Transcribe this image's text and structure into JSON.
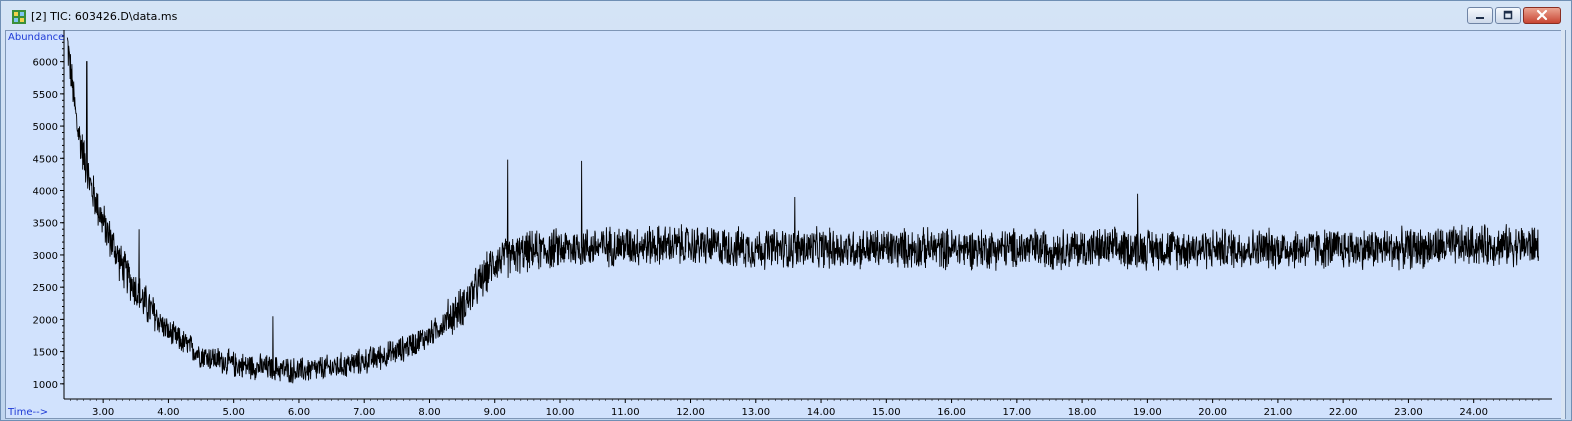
{
  "window": {
    "title": "[2] TIC: 603426.D\\data.ms",
    "icon": "chromatogram-icon",
    "buttons": {
      "minimize": "minimize-icon",
      "maximize": "maximize-icon",
      "close": "close-icon"
    }
  },
  "chart_data": {
    "type": "line",
    "title": "",
    "ylabel": "Abundance",
    "xlabel": "Time-->",
    "xlim": [
      2.4,
      25.2
    ],
    "ylim": [
      780,
      6460
    ],
    "x_ticks": [
      "3.00",
      "4.00",
      "5.00",
      "6.00",
      "7.00",
      "8.00",
      "9.00",
      "10.00",
      "11.00",
      "12.00",
      "13.00",
      "14.00",
      "15.00",
      "16.00",
      "17.00",
      "18.00",
      "19.00",
      "20.00",
      "21.00",
      "22.00",
      "23.00",
      "24.00"
    ],
    "x_tick_values": [
      3,
      4,
      5,
      6,
      7,
      8,
      9,
      10,
      11,
      12,
      13,
      14,
      15,
      16,
      17,
      18,
      19,
      20,
      21,
      22,
      23,
      24
    ],
    "y_ticks": [
      "1000",
      "1500",
      "2000",
      "2500",
      "3000",
      "3500",
      "4000",
      "4500",
      "5000",
      "5500",
      "6000"
    ],
    "y_tick_values": [
      1000,
      1500,
      2000,
      2500,
      3000,
      3500,
      4000,
      4500,
      5000,
      5500,
      6000
    ],
    "grid": false,
    "series": [
      {
        "color": "#000000",
        "trend": {
          "x": [
            2.45,
            2.6,
            2.8,
            3.0,
            3.3,
            3.6,
            4.0,
            4.5,
            5.0,
            5.5,
            6.0,
            6.5,
            7.0,
            7.5,
            8.0,
            8.5,
            8.8,
            9.0,
            9.5,
            10.0,
            11.0,
            12.0,
            13.0,
            14.0,
            15.0,
            16.0,
            17.0,
            18.0,
            19.0,
            20.0,
            21.0,
            22.0,
            23.0,
            24.0,
            25.0
          ],
          "y": [
            6300,
            5000,
            4100,
            3500,
            2800,
            2300,
            1800,
            1450,
            1300,
            1250,
            1200,
            1250,
            1350,
            1500,
            1750,
            2200,
            2600,
            2900,
            3050,
            3100,
            3150,
            3150,
            3100,
            3100,
            3100,
            3100,
            3100,
            3100,
            3100,
            3100,
            3100,
            3100,
            3100,
            3150,
            3150
          ]
        },
        "noise_amplitude": 300,
        "spikes": [
          {
            "x": 2.75,
            "y": 6000
          },
          {
            "x": 3.55,
            "y": 3400
          },
          {
            "x": 5.6,
            "y": 2050
          },
          {
            "x": 9.2,
            "y": 4480
          },
          {
            "x": 10.33,
            "y": 4460
          },
          {
            "x": 13.6,
            "y": 3900
          },
          {
            "x": 18.85,
            "y": 3950
          }
        ]
      }
    ]
  }
}
